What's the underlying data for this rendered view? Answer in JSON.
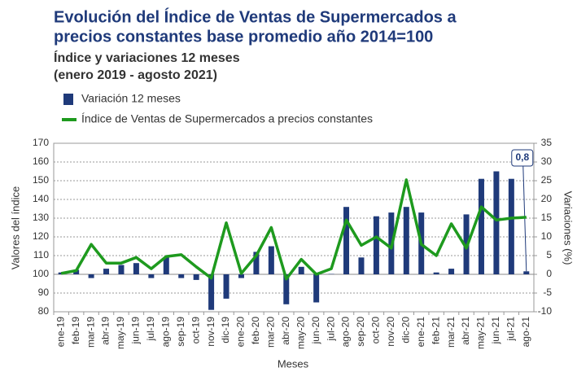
{
  "chart_data": {
    "type": "bar-line",
    "title": [
      "Evolución del Índice de Ventas de Supermercados a",
      "precios constantes base promedio año 2014=100"
    ],
    "subtitle": [
      "Índice y variaciones 12 meses",
      "(enero 2019 - agosto 2021)"
    ],
    "x_label": "Meses",
    "y_label": "Valores del índice",
    "y2_label": "Variaciones (%)",
    "categories": [
      "ene-19",
      "feb-19",
      "mar-19",
      "abr-19",
      "may-19",
      "jun-19",
      "jul-19",
      "ago-19",
      "sep-19",
      "oct-19",
      "nov-19",
      "dic-19",
      "ene-20",
      "feb-20",
      "mar-20",
      "abr-20",
      "may-20",
      "jun-20",
      "jul-20",
      "ago-20",
      "sep-20",
      "oct-20",
      "nov-20",
      "dic-20",
      "ene-21",
      "feb-21",
      "mar-21",
      "abr-21",
      "may-21",
      "jun-21",
      "jul-21",
      "ago-21"
    ],
    "series": [
      {
        "name": "Variación 12 meses",
        "type": "bar",
        "axis": "y2",
        "color": "#1f3a7a",
        "values": [
          0.5,
          1.2,
          -1,
          1.5,
          2.5,
          3,
          -1,
          4.5,
          -1,
          -1.5,
          -9.5,
          -6.5,
          -1,
          6,
          7.5,
          -8,
          2,
          -7.5,
          0.1,
          18,
          4.5,
          15.5,
          16.5,
          18,
          16.5,
          0.5,
          1.5,
          16,
          25.5,
          27.5,
          25.5,
          0.8
        ],
        "value_labels": [
          null,
          null,
          null,
          null,
          null,
          null,
          null,
          null,
          null,
          null,
          null,
          null,
          null,
          null,
          null,
          null,
          null,
          null,
          null,
          null,
          null,
          null,
          null,
          null,
          null,
          null,
          null,
          null,
          null,
          null,
          null,
          "0,8"
        ]
      },
      {
        "name": "Índice de Ventas de Supermercados a precios constantes",
        "type": "line",
        "axis": "y",
        "color": "#1e9a1e",
        "values": [
          100.5,
          102,
          116,
          106,
          106,
          109,
          103,
          109.5,
          110.5,
          104,
          98,
          127.5,
          100.5,
          110,
          125,
          97.5,
          108,
          100,
          103,
          129,
          115.5,
          120,
          114,
          150.5,
          116,
          110,
          127,
          114,
          136,
          129,
          130,
          130.5
        ]
      }
    ],
    "ylim": [
      80,
      170
    ],
    "yticks": [
      80,
      90,
      100,
      110,
      120,
      130,
      140,
      150,
      160,
      170
    ],
    "y2lim": [
      -10,
      35
    ],
    "y2ticks": [
      -10,
      -5,
      0,
      5,
      10,
      15,
      20,
      25,
      30,
      35
    ],
    "grid": true
  }
}
